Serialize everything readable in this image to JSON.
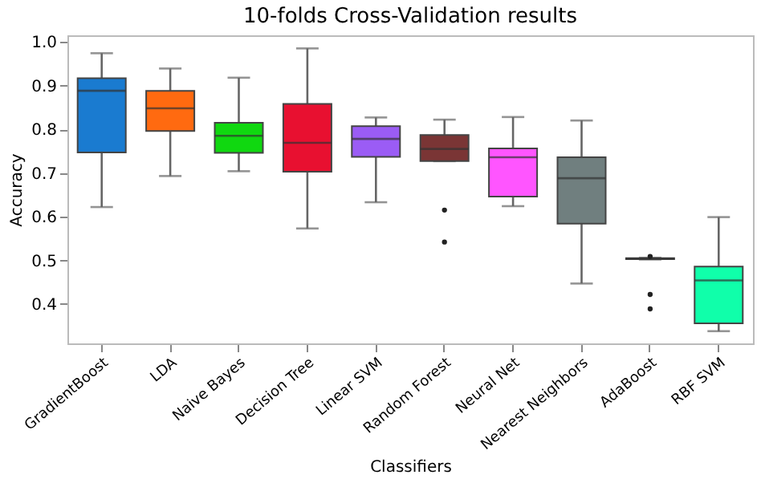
{
  "chart_data": {
    "type": "box",
    "title": "10-folds Cross-Validation results",
    "xlabel": "Classifiers",
    "ylabel": "Accuracy",
    "categories": [
      "GradientBoost",
      "LDA",
      "Naive Bayes",
      "Decision Tree",
      "Linear SVM",
      "Random Forest",
      "Neural Net",
      "Nearest Neighbors",
      "AdaBoost",
      "RBF SVM"
    ],
    "colors": [
      "#1a7bd0",
      "#ff6a10",
      "#10d810",
      "#e81030",
      "#9b5cf5",
      "#7a3535",
      "#ff55ff",
      "#707f7f",
      "#c8c820",
      "#10ffaa"
    ],
    "boxes": [
      {
        "low": 0.622,
        "q1": 0.747,
        "median": 0.888,
        "q3": 0.917,
        "high": 0.974
      },
      {
        "low": 0.693,
        "q1": 0.796,
        "median": 0.848,
        "q3": 0.888,
        "high": 0.939
      },
      {
        "low": 0.704,
        "q1": 0.746,
        "median": 0.785,
        "q3": 0.815,
        "high": 0.918
      },
      {
        "low": 0.573,
        "q1": 0.703,
        "median": 0.769,
        "q3": 0.858,
        "high": 0.985
      },
      {
        "low": 0.633,
        "q1": 0.737,
        "median": 0.778,
        "q3": 0.807,
        "high": 0.827
      },
      {
        "low": 0.727,
        "q1": 0.727,
        "median": 0.755,
        "q3": 0.787,
        "high": 0.822,
        "outliers": [
          0.615,
          0.542
        ]
      },
      {
        "low": 0.624,
        "q1": 0.646,
        "median": 0.736,
        "q3": 0.756,
        "high": 0.828
      },
      {
        "low": 0.447,
        "q1": 0.584,
        "median": 0.688,
        "q3": 0.736,
        "high": 0.82
      },
      {
        "low": 0.502,
        "q1": 0.503,
        "median": 0.504,
        "q3": 0.505,
        "high": 0.506,
        "outliers": [
          0.509,
          0.422,
          0.389
        ]
      },
      {
        "low": 0.338,
        "q1": 0.356,
        "median": 0.454,
        "q3": 0.486,
        "high": 0.599
      }
    ],
    "ylim": [
      0.31,
      1.015
    ],
    "yticks": [
      0.4,
      0.5,
      0.6,
      0.7,
      0.8,
      0.9,
      {
        "value": 1,
        "label": "1.0"
      }
    ],
    "grid": false,
    "legend": false
  }
}
